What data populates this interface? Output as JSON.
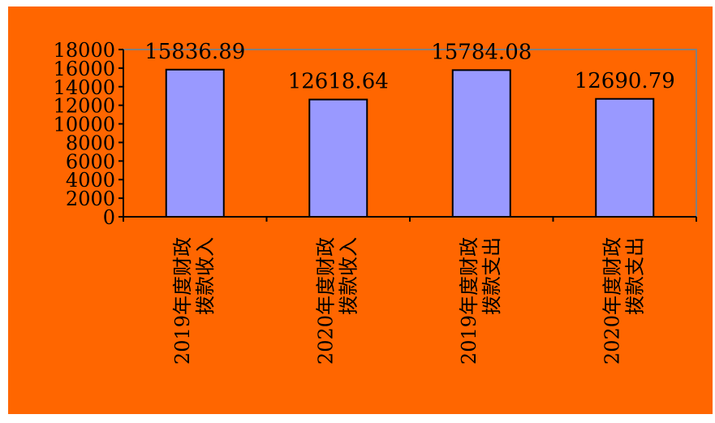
{
  "colors": {
    "page_background": "#ffffff",
    "chart_background": "#ff6600",
    "bar_fill": "#9999ff",
    "bar_stroke": "#000000",
    "plot_border": "#808080"
  },
  "chart_data": {
    "type": "bar",
    "title": "",
    "xlabel": "",
    "ylabel": "",
    "categories": [
      [
        "2019年度财政",
        "拨款收入"
      ],
      [
        "2020年度财政",
        "拨款收入"
      ],
      [
        "2019年度财政",
        "拨款支出"
      ],
      [
        "2020年度财政",
        "拨款支出"
      ]
    ],
    "values": [
      15836.89,
      12618.64,
      15784.08,
      12690.79
    ],
    "data_labels": [
      "15836.89",
      "12618.64",
      "15784.08",
      "12690.79"
    ],
    "ylim": [
      0,
      18000
    ],
    "yticks": [
      0,
      2000,
      4000,
      6000,
      8000,
      10000,
      12000,
      14000,
      16000,
      18000
    ],
    "grid": false,
    "legend": "none"
  }
}
